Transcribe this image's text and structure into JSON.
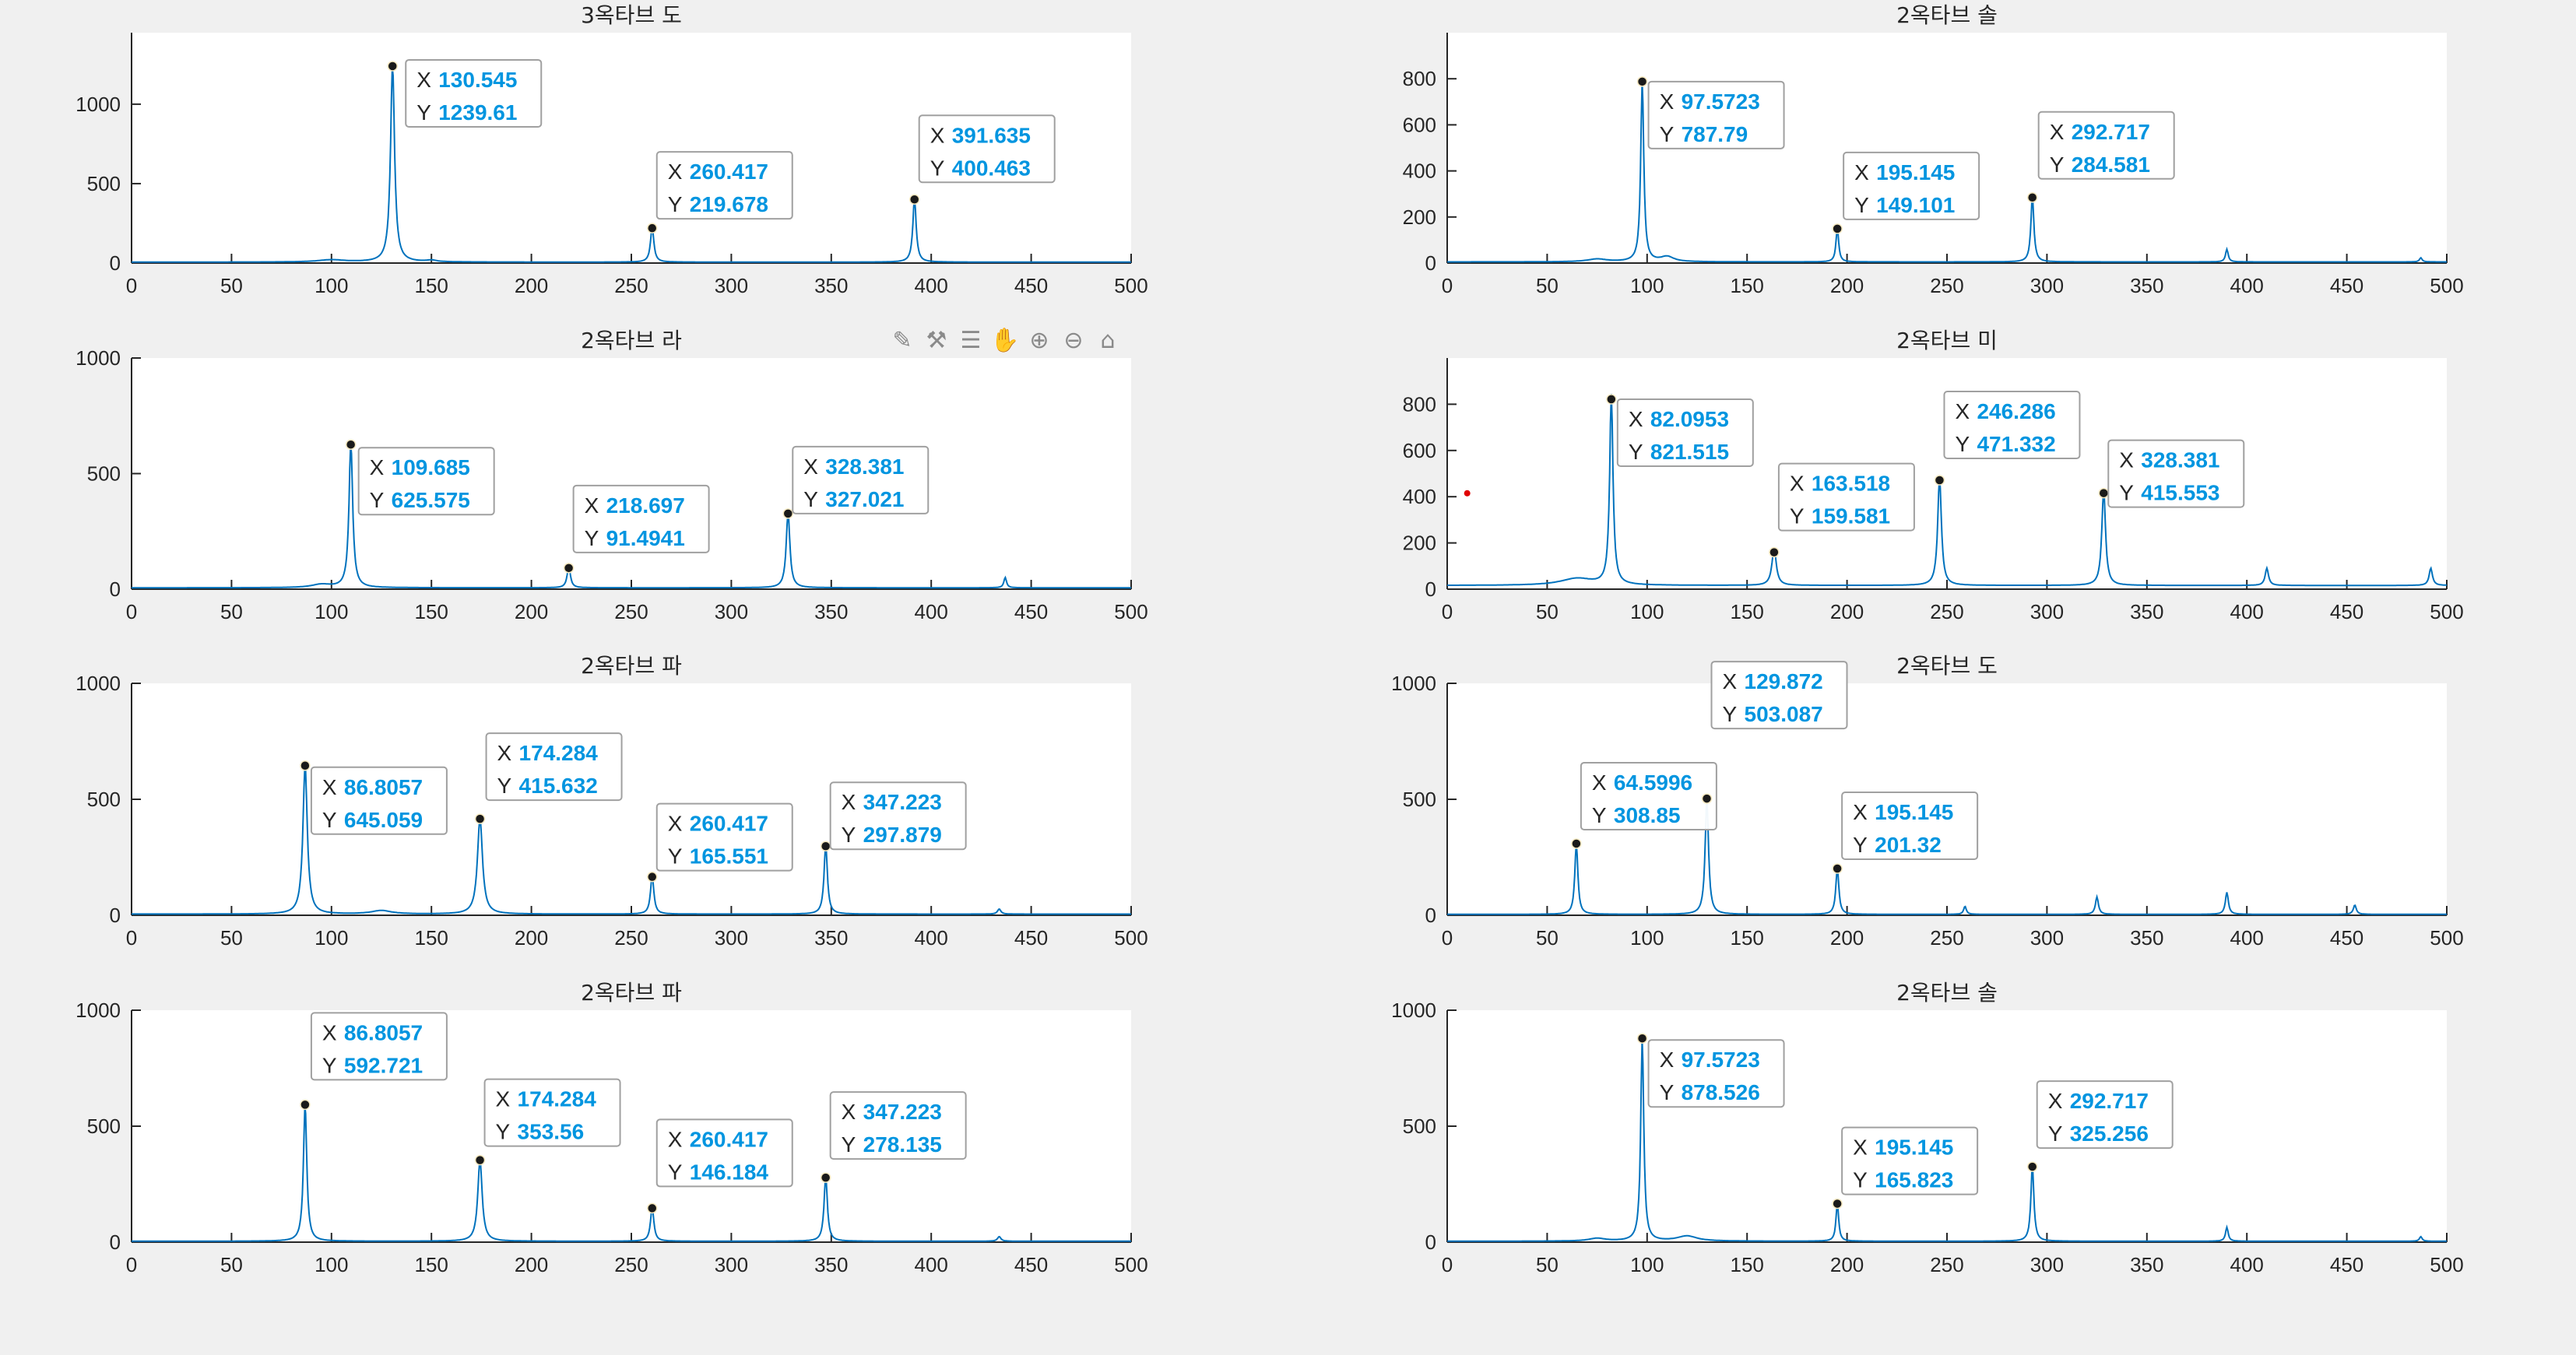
{
  "figure": {
    "background": "#f0f0f0",
    "axes_bg": "#ffffff",
    "line_color": "#0072bd",
    "datatip_value_color": "#0095e0",
    "datatip_label_color": "#262626",
    "marker_color": "#1a1a1a",
    "stray_marker_color": "#e00000",
    "toolbar_icons": [
      "brush-icon",
      "data-cursor-icon",
      "legend-icon",
      "pan-icon",
      "zoom-in-icon",
      "zoom-out-icon",
      "home-icon"
    ]
  },
  "chart_data": [
    {
      "type": "line",
      "title": "3옥타브 도",
      "xlim": [
        0,
        500
      ],
      "ylim": [
        0,
        1450
      ],
      "xticks": [
        0,
        50,
        100,
        150,
        200,
        250,
        300,
        350,
        400,
        450,
        500
      ],
      "yticks": [
        0,
        500,
        1000
      ],
      "baseline": 6,
      "peaks": [
        {
          "x": 130.545,
          "y": 1239.61,
          "w": 1.2
        },
        {
          "x": 260.417,
          "y": 219.678,
          "w": 1.0
        },
        {
          "x": 391.635,
          "y": 400.463,
          "w": 1.0
        },
        {
          "x": 100,
          "y": 14,
          "w": 8
        },
        {
          "x": 150,
          "y": 10,
          "w": 3
        }
      ],
      "datatips": [
        {
          "x": "130.545",
          "y": "1239.61"
        },
        {
          "x": "260.417",
          "y": "219.678"
        },
        {
          "x": "391.635",
          "y": "400.463"
        }
      ]
    },
    {
      "type": "line",
      "title": "2옥타브 솔",
      "xlim": [
        0,
        500
      ],
      "ylim": [
        0,
        1000
      ],
      "xticks": [
        0,
        50,
        100,
        150,
        200,
        250,
        300,
        350,
        400,
        450,
        500
      ],
      "yticks": [
        0,
        200,
        400,
        600,
        800
      ],
      "baseline": 5,
      "peaks": [
        {
          "x": 97.5723,
          "y": 787.79,
          "w": 0.9
        },
        {
          "x": 195.145,
          "y": 149.101,
          "w": 0.8
        },
        {
          "x": 292.717,
          "y": 284.581,
          "w": 0.9
        },
        {
          "x": 390,
          "y": 55,
          "w": 0.8
        },
        {
          "x": 487,
          "y": 18,
          "w": 0.8
        },
        {
          "x": 75,
          "y": 12,
          "w": 6
        },
        {
          "x": 110,
          "y": 22,
          "w": 4
        }
      ],
      "datatips": [
        {
          "x": "97.5723",
          "y": "787.79"
        },
        {
          "x": "195.145",
          "y": "149.101"
        },
        {
          "x": "292.717",
          "y": "284.581"
        }
      ]
    },
    {
      "type": "line",
      "title": "2옥타브 라",
      "xlim": [
        0,
        500
      ],
      "ylim": [
        0,
        1000
      ],
      "xticks": [
        0,
        50,
        100,
        150,
        200,
        250,
        300,
        350,
        400,
        450,
        500
      ],
      "yticks": [
        0,
        500,
        1000
      ],
      "baseline": 6,
      "peaks": [
        {
          "x": 109.685,
          "y": 625.575,
          "w": 1.1
        },
        {
          "x": 218.697,
          "y": 91.4941,
          "w": 1.0
        },
        {
          "x": 328.381,
          "y": 327.021,
          "w": 1.1
        },
        {
          "x": 437,
          "y": 45,
          "w": 0.8
        },
        {
          "x": 95,
          "y": 14,
          "w": 6
        }
      ],
      "datatips": [
        {
          "x": "109.685",
          "y": "625.575"
        },
        {
          "x": "218.697",
          "y": "91.4941"
        },
        {
          "x": "328.381",
          "y": "327.021"
        }
      ]
    },
    {
      "type": "line",
      "title": "2옥타브 미",
      "xlim": [
        0,
        500
      ],
      "ylim": [
        0,
        1000
      ],
      "xticks": [
        0,
        50,
        100,
        150,
        200,
        250,
        300,
        350,
        400,
        450,
        500
      ],
      "yticks": [
        0,
        200,
        400,
        600,
        800
      ],
      "baseline": 16,
      "peaks": [
        {
          "x": 82.0953,
          "y": 821.515,
          "w": 1.0
        },
        {
          "x": 163.518,
          "y": 159.581,
          "w": 1.3
        },
        {
          "x": 246.286,
          "y": 471.332,
          "w": 1.1
        },
        {
          "x": 328.381,
          "y": 415.553,
          "w": 1.1
        },
        {
          "x": 410,
          "y": 75,
          "w": 1.0
        },
        {
          "x": 492,
          "y": 75,
          "w": 1.0
        },
        {
          "x": 65,
          "y": 30,
          "w": 10
        }
      ],
      "datatips": [
        {
          "x": "82.0953",
          "y": "821.515"
        },
        {
          "x": "163.518",
          "y": "159.581"
        },
        {
          "x": "246.286",
          "y": "471.332"
        },
        {
          "x": "328.381",
          "y": "415.553"
        }
      ],
      "stray_point": {
        "x": 10,
        "y": 415
      }
    },
    {
      "type": "line",
      "title": "2옥타브 파",
      "xlim": [
        0,
        500
      ],
      "ylim": [
        0,
        1000
      ],
      "xticks": [
        0,
        50,
        100,
        150,
        200,
        250,
        300,
        350,
        400,
        450,
        500
      ],
      "yticks": [
        0,
        500,
        1000
      ],
      "baseline": 5,
      "peaks": [
        {
          "x": 86.8057,
          "y": 645.059,
          "w": 1.3
        },
        {
          "x": 174.284,
          "y": 415.632,
          "w": 1.5
        },
        {
          "x": 260.417,
          "y": 165.551,
          "w": 1.0
        },
        {
          "x": 347.223,
          "y": 297.879,
          "w": 1.0
        },
        {
          "x": 434,
          "y": 22,
          "w": 1.0
        },
        {
          "x": 125,
          "y": 15,
          "w": 6
        }
      ],
      "datatips": [
        {
          "x": "86.8057",
          "y": "645.059"
        },
        {
          "x": "174.284",
          "y": "415.632"
        },
        {
          "x": "260.417",
          "y": "165.551"
        },
        {
          "x": "347.223",
          "y": "297.879"
        }
      ]
    },
    {
      "type": "line",
      "title": "2옥타브 도",
      "xlim": [
        0,
        500
      ],
      "ylim": [
        0,
        1000
      ],
      "xticks": [
        0,
        50,
        100,
        150,
        200,
        250,
        300,
        350,
        400,
        450,
        500
      ],
      "yticks": [
        0,
        500,
        1000
      ],
      "baseline": 4,
      "peaks": [
        {
          "x": 64.5996,
          "y": 308.85,
          "w": 0.9
        },
        {
          "x": 129.872,
          "y": 503.087,
          "w": 1.0
        },
        {
          "x": 195.145,
          "y": 201.32,
          "w": 0.9
        },
        {
          "x": 259,
          "y": 35,
          "w": 0.8
        },
        {
          "x": 325,
          "y": 75,
          "w": 0.9
        },
        {
          "x": 390,
          "y": 95,
          "w": 0.9
        },
        {
          "x": 454,
          "y": 40,
          "w": 0.9
        }
      ],
      "datatips": [
        {
          "x": "64.5996",
          "y": "308.85"
        },
        {
          "x": "129.872",
          "y": "503.087"
        },
        {
          "x": "195.145",
          "y": "201.32"
        }
      ]
    },
    {
      "type": "line",
      "title": "2옥타브 파",
      "xlim": [
        0,
        500
      ],
      "ylim": [
        0,
        1000
      ],
      "xticks": [
        0,
        50,
        100,
        150,
        200,
        250,
        300,
        350,
        400,
        450,
        500
      ],
      "yticks": [
        0,
        500,
        1000
      ],
      "baseline": 4,
      "peaks": [
        {
          "x": 86.8057,
          "y": 592.721,
          "w": 1.0
        },
        {
          "x": 174.284,
          "y": 353.56,
          "w": 1.3
        },
        {
          "x": 260.417,
          "y": 146.184,
          "w": 1.0
        },
        {
          "x": 347.223,
          "y": 278.135,
          "w": 1.0
        },
        {
          "x": 434,
          "y": 20,
          "w": 1.0
        }
      ],
      "datatips": [
        {
          "x": "86.8057",
          "y": "592.721"
        },
        {
          "x": "174.284",
          "y": "353.56"
        },
        {
          "x": "260.417",
          "y": "146.184"
        },
        {
          "x": "347.223",
          "y": "278.135"
        }
      ]
    },
    {
      "type": "line",
      "title": "2옥타브 솔",
      "xlim": [
        0,
        500
      ],
      "ylim": [
        0,
        1000
      ],
      "xticks": [
        0,
        50,
        100,
        150,
        200,
        250,
        300,
        350,
        400,
        450,
        500
      ],
      "yticks": [
        0,
        500,
        1000
      ],
      "baseline": 4,
      "peaks": [
        {
          "x": 97.5723,
          "y": 878.526,
          "w": 0.9
        },
        {
          "x": 195.145,
          "y": 165.823,
          "w": 0.8
        },
        {
          "x": 292.717,
          "y": 325.256,
          "w": 0.9
        },
        {
          "x": 390,
          "y": 60,
          "w": 0.8
        },
        {
          "x": 487,
          "y": 20,
          "w": 0.8
        },
        {
          "x": 120,
          "y": 22,
          "w": 6
        },
        {
          "x": 75,
          "y": 12,
          "w": 5
        }
      ],
      "datatips": [
        {
          "x": "97.5723",
          "y": "878.526"
        },
        {
          "x": "195.145",
          "y": "165.823"
        },
        {
          "x": "292.717",
          "y": "325.256"
        }
      ]
    }
  ]
}
